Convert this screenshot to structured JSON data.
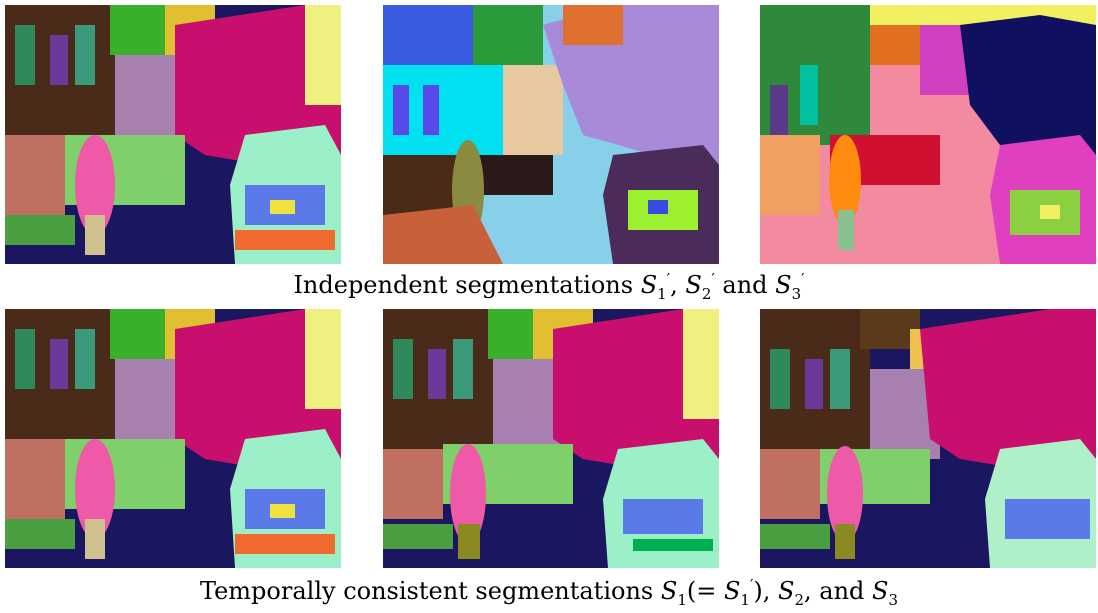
{
  "figure": {
    "caption_top": {
      "prefix": "Independent segmentations ",
      "s1": "S",
      "s1_sub": "1",
      "s1_sup": "′",
      "sep1": ", ",
      "s2": "S",
      "s2_sub": "2",
      "s2_sup": "′",
      "and": " and ",
      "s3": "S",
      "s3_sub": "3",
      "s3_sup": "′"
    },
    "caption_bottom": {
      "prefix": "Temporally consistent segmentations ",
      "s1": "S",
      "s1_sub": "1",
      "eq_open": "(= ",
      "s1p": "S",
      "s1p_sub": "1",
      "s1p_sup": "′",
      "eq_close": ")",
      "sep1": ", ",
      "s2": "S",
      "s2_sub": "2",
      "and": ", and ",
      "s3": "S",
      "s3_sub": "3"
    },
    "palette": {
      "road": "#1b1660",
      "tree": "#c80f6e",
      "car": "#9cf0c8",
      "sidewalk_light": "#88d0ea",
      "sidewalk_pink": "#f28aa0",
      "building_dark": "#4a2b1a",
      "sky": "#f0f080",
      "person": "#ef5aa8",
      "cyan": "#00e0f0",
      "green": "#4ad05a",
      "blue": "#5a7ae8",
      "purple": "#a070e0",
      "lavender": "#a88ad8",
      "orange": "#ff8a10",
      "olive": "#8a8a20",
      "navy": "#101060"
    }
  }
}
